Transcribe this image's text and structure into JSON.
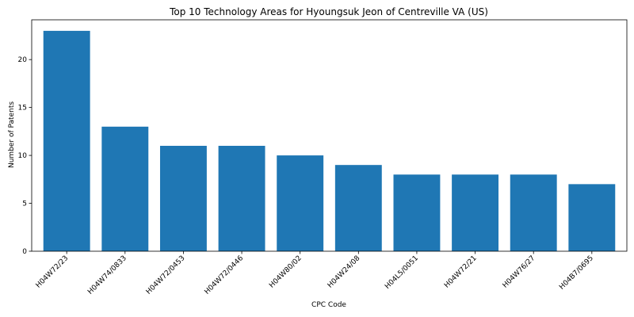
{
  "chart_data": {
    "type": "bar",
    "title": "Top 10 Technology Areas for Hyoungsuk Jeon of Centreville VA (US)",
    "xlabel": "CPC Code",
    "ylabel": "Number of Patents",
    "categories": [
      "H04W72/23",
      "H04W74/0833",
      "H04W72/0453",
      "H04W72/0446",
      "H04W80/02",
      "H04W24/08",
      "H04L5/0051",
      "H04W72/21",
      "H04W76/27",
      "H04B7/0695"
    ],
    "values": [
      23,
      13,
      11,
      11,
      10,
      9,
      8,
      8,
      8,
      7
    ],
    "ylim": [
      0,
      24.15
    ],
    "yticks": [
      0,
      5,
      10,
      15,
      20
    ],
    "grid": false,
    "bar_color": "#1f77b4"
  }
}
